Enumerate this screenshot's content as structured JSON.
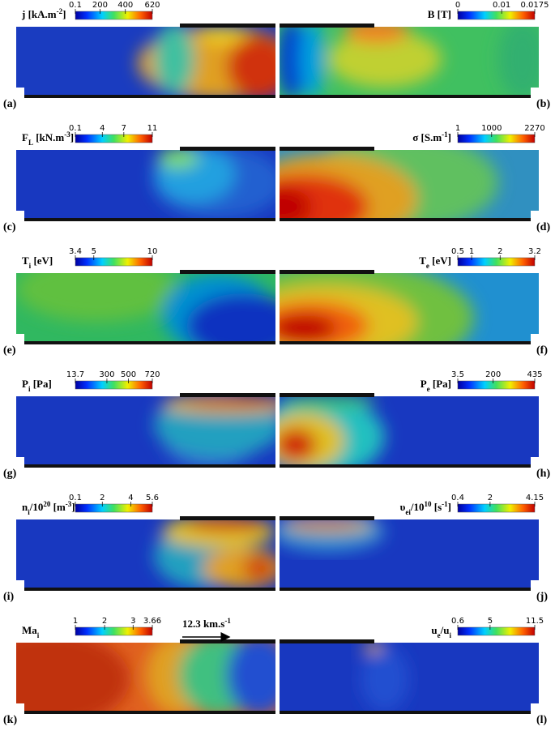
{
  "panels": [
    {
      "label": "(a)",
      "title": [
        {
          "text": "j [kA.m"
        },
        {
          "text": "-2",
          "style": "sup"
        },
        {
          "text": "]"
        }
      ],
      "colorbar_ticks": [
        "0.1",
        "200",
        "400",
        "620"
      ]
    },
    {
      "label": "(b)",
      "title": [
        {
          "text": "B [T]"
        }
      ],
      "colorbar_ticks": [
        "0",
        "0.01",
        "0.0175"
      ]
    },
    {
      "label": "(c)",
      "title": [
        {
          "text": "F"
        },
        {
          "text": "L",
          "style": "sub"
        },
        {
          "text": " [kN.m"
        },
        {
          "text": "-3",
          "style": "sup"
        },
        {
          "text": "]"
        }
      ],
      "colorbar_ticks": [
        "0.1",
        "4",
        "7",
        "11"
      ]
    },
    {
      "label": "(d)",
      "title": [
        {
          "text": "σ [S.m"
        },
        {
          "text": "-1",
          "style": "sup"
        },
        {
          "text": "]"
        }
      ],
      "colorbar_ticks": [
        "1",
        "1000",
        "2270"
      ]
    },
    {
      "label": "(e)",
      "title": [
        {
          "text": "T"
        },
        {
          "text": "i",
          "style": "sub"
        },
        {
          "text": " [eV]"
        }
      ],
      "colorbar_ticks": [
        "3.4",
        "5",
        "10"
      ]
    },
    {
      "label": "(f)",
      "title": [
        {
          "text": "T"
        },
        {
          "text": "e",
          "style": "sub"
        },
        {
          "text": " [eV]"
        }
      ],
      "colorbar_ticks": [
        "0.5",
        "1",
        "2",
        "3.2"
      ]
    },
    {
      "label": "(g)",
      "title": [
        {
          "text": "P"
        },
        {
          "text": "i",
          "style": "sub"
        },
        {
          "text": " [Pa]"
        }
      ],
      "colorbar_ticks": [
        "13.7",
        "300",
        "500",
        "720"
      ]
    },
    {
      "label": "(h)",
      "title": [
        {
          "text": "P"
        },
        {
          "text": "e",
          "style": "sub"
        },
        {
          "text": " [Pa]"
        }
      ],
      "colorbar_ticks": [
        "3.5",
        "200",
        "435"
      ]
    },
    {
      "label": "(i)",
      "title": [
        {
          "text": "n"
        },
        {
          "text": "i",
          "style": "sub"
        },
        {
          "text": "/10"
        },
        {
          "text": "20",
          "style": "sup"
        },
        {
          "text": " [m"
        },
        {
          "text": "-3",
          "style": "sup"
        },
        {
          "text": "]"
        }
      ],
      "colorbar_ticks": [
        "0.1",
        "2",
        "4",
        "5.6"
      ]
    },
    {
      "label": "(j)",
      "title": [
        {
          "text": "υ"
        },
        {
          "text": "ei",
          "style": "sub"
        },
        {
          "text": "/10"
        },
        {
          "text": "10",
          "style": "sup"
        },
        {
          "text": " [s"
        },
        {
          "text": "-1",
          "style": "sup"
        },
        {
          "text": "]"
        }
      ],
      "colorbar_ticks": [
        "0.4",
        "2",
        "4.15"
      ]
    },
    {
      "label": "(k)",
      "title": [
        {
          "text": "Ma"
        },
        {
          "text": "i",
          "style": "sub"
        }
      ],
      "colorbar_ticks": [
        "1",
        "2",
        "3",
        "3.66"
      ]
    },
    {
      "label": "(l)",
      "title": [
        {
          "text": "u"
        },
        {
          "text": "e",
          "style": "sub"
        },
        {
          "text": "/u"
        },
        {
          "text": "i",
          "style": "sub"
        }
      ],
      "colorbar_ticks": [
        "0.6",
        "5",
        "11.5"
      ]
    }
  ],
  "annotation": [
    {
      "text": "12.3 km.s"
    },
    {
      "text": "-1",
      "style": "sup"
    }
  ]
}
